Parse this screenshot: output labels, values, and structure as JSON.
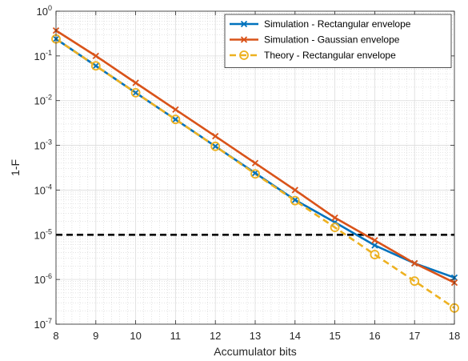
{
  "chart_data": {
    "type": "line",
    "title": "",
    "xlabel": "Accumulator bits",
    "ylabel": "1-F",
    "x": [
      8,
      9,
      10,
      11,
      12,
      13,
      14,
      15,
      16,
      17,
      18
    ],
    "xlim": [
      8,
      18
    ],
    "xticks": [
      "8",
      "9",
      "10",
      "11",
      "12",
      "13",
      "14",
      "15",
      "16",
      "17",
      "18"
    ],
    "yscale": "log",
    "ylim": [
      1e-07,
      1
    ],
    "yticks": [
      {
        "value": 1,
        "base": "10",
        "exp": "0"
      },
      {
        "value": 0.1,
        "base": "10",
        "exp": "-1"
      },
      {
        "value": 0.01,
        "base": "10",
        "exp": "-2"
      },
      {
        "value": 0.001,
        "base": "10",
        "exp": "-3"
      },
      {
        "value": 0.0001,
        "base": "10",
        "exp": "-4"
      },
      {
        "value": 1e-05,
        "base": "10",
        "exp": "-5"
      },
      {
        "value": 1e-06,
        "base": "10",
        "exp": "-6"
      },
      {
        "value": 1e-07,
        "base": "10",
        "exp": "-7"
      }
    ],
    "grid": true,
    "minor_grid": true,
    "legend_position": "top-right",
    "series": [
      {
        "name": "Simulation - Rectangular envelope",
        "color": "#0072BD",
        "line": "solid",
        "marker": "x",
        "values": [
          0.24,
          0.06,
          0.015,
          0.0038,
          0.00095,
          0.00024,
          6e-05,
          1.9e-05,
          5.8e-06,
          2.3e-06,
          1.1e-06
        ]
      },
      {
        "name": "Simulation - Gaussian envelope",
        "color": "#D95319",
        "line": "solid",
        "marker": "x",
        "values": [
          0.37,
          0.1,
          0.025,
          0.0063,
          0.0016,
          0.0004,
          0.0001,
          2.4e-05,
          7.5e-06,
          2.3e-06,
          8.5e-07
        ]
      },
      {
        "name": "Theory - Rectangular envelope",
        "color": "#EDB120",
        "line": "dashed",
        "marker": "o",
        "values": [
          0.24,
          0.06,
          0.015,
          0.0038,
          0.00095,
          0.00023,
          5.8e-05,
          1.46e-05,
          3.6e-06,
          9.2e-07,
          2.3e-07
        ]
      }
    ],
    "reference_lines": [
      {
        "y": 1e-05,
        "color": "#000000",
        "line": "dashed"
      }
    ]
  }
}
